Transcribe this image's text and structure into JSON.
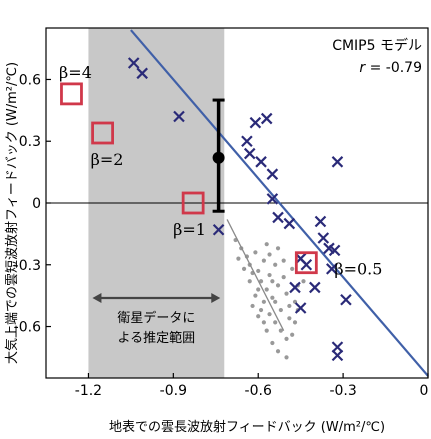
{
  "chart_data": {
    "type": "scatter",
    "title": "CMIP5 モデル",
    "correlation_label": "r = -0.79",
    "correlation_parts": {
      "italic": "r",
      "rest": " = -0.79"
    },
    "xlabel": "地表での雲長波放射フィードバック (W/m²/℃)",
    "ylabel": "大気上端での雲短波放射フィードバック (W/m²/℃)",
    "xlim": [
      -1.35,
      0
    ],
    "ylim": [
      -0.85,
      0.85
    ],
    "xticks": [
      {
        "value": -1.2,
        "label": "-1.2"
      },
      {
        "value": -0.9,
        "label": "-0.9"
      },
      {
        "value": -0.6,
        "label": "-0.6"
      },
      {
        "value": -0.3,
        "label": "-0.3"
      },
      {
        "value": 0,
        "label": "0"
      }
    ],
    "yticks": [
      {
        "value": 0.6,
        "label": "0.6"
      },
      {
        "value": 0.3,
        "label": "0.3"
      },
      {
        "value": 0,
        "label": "0"
      },
      {
        "value": -0.3,
        "label": "-0.3"
      },
      {
        "value": -0.6,
        "label": "-0.6"
      }
    ],
    "satellite_range": {
      "x": [
        -1.2,
        -0.72
      ],
      "label_lines": [
        "衛星データに",
        "よる推定範囲"
      ],
      "color": "#c8c8c8"
    },
    "estimate": {
      "x": -0.74,
      "y": 0.22,
      "low": -0.04,
      "high": 0.5
    },
    "regression_line": {
      "x": [
        -1.05,
        0
      ],
      "y": [
        0.84,
        -0.84
      ],
      "color": "#4060a8"
    },
    "cmip5_models": {
      "marker": "x",
      "color": "#2a2a78",
      "points": [
        [
          -1.04,
          0.68
        ],
        [
          -1.01,
          0.63
        ],
        [
          -0.88,
          0.42
        ],
        [
          -0.74,
          -0.13
        ],
        [
          -0.64,
          0.3
        ],
        [
          -0.63,
          0.24
        ],
        [
          -0.61,
          0.39
        ],
        [
          -0.59,
          0.2
        ],
        [
          -0.57,
          0.41
        ],
        [
          -0.55,
          0.14
        ],
        [
          -0.55,
          0.02
        ],
        [
          -0.53,
          -0.07
        ],
        [
          -0.49,
          -0.1
        ],
        [
          -0.45,
          -0.27
        ],
        [
          -0.47,
          -0.41
        ],
        [
          -0.45,
          -0.51
        ],
        [
          -0.4,
          -0.41
        ],
        [
          -0.37,
          -0.17
        ],
        [
          -0.35,
          -0.22
        ],
        [
          -0.34,
          -0.32
        ],
        [
          -0.33,
          -0.23
        ],
        [
          -0.32,
          0.2
        ],
        [
          -0.32,
          -0.7
        ],
        [
          -0.32,
          -0.74
        ],
        [
          -0.29,
          -0.47
        ],
        [
          -0.38,
          -0.09
        ],
        [
          -0.43,
          -0.3
        ]
      ]
    },
    "beta_cases": {
      "marker": "square",
      "color": "#d0384a",
      "points": [
        {
          "label": "β=4",
          "x": -1.26,
          "y": 0.53
        },
        {
          "label": "β=2",
          "x": -1.15,
          "y": 0.34
        },
        {
          "label": "β=1",
          "x": -0.83,
          "y": 0.0
        },
        {
          "label": "β=0.5",
          "x": -0.43,
          "y": -0.29
        }
      ]
    },
    "perturbed_ensemble": {
      "marker": "dot",
      "color": "#999999",
      "trend_line": {
        "x": [
          -0.71,
          -0.51
        ],
        "y": [
          -0.08,
          -0.62
        ]
      },
      "points": [
        [
          -0.68,
          -0.18
        ],
        [
          -0.66,
          -0.22
        ],
        [
          -0.64,
          -0.26
        ],
        [
          -0.63,
          -0.3
        ],
        [
          -0.61,
          -0.24
        ],
        [
          -0.6,
          -0.33
        ],
        [
          -0.59,
          -0.38
        ],
        [
          -0.58,
          -0.28
        ],
        [
          -0.57,
          -0.42
        ],
        [
          -0.56,
          -0.35
        ],
        [
          -0.55,
          -0.46
        ],
        [
          -0.54,
          -0.3
        ],
        [
          -0.53,
          -0.4
        ],
        [
          -0.52,
          -0.52
        ],
        [
          -0.51,
          -0.36
        ],
        [
          -0.5,
          -0.44
        ],
        [
          -0.49,
          -0.56
        ],
        [
          -0.48,
          -0.32
        ],
        [
          -0.47,
          -0.48
        ],
        [
          -0.46,
          -0.4
        ],
        [
          -0.62,
          -0.34
        ],
        [
          -0.6,
          -0.42
        ],
        [
          -0.58,
          -0.48
        ],
        [
          -0.56,
          -0.54
        ],
        [
          -0.54,
          -0.58
        ],
        [
          -0.52,
          -0.62
        ],
        [
          -0.5,
          -0.66
        ],
        [
          -0.55,
          -0.68
        ],
        [
          -0.57,
          -0.62
        ],
        [
          -0.53,
          -0.72
        ],
        [
          -0.65,
          -0.32
        ],
        [
          -0.61,
          -0.45
        ],
        [
          -0.59,
          -0.52
        ],
        [
          -0.63,
          -0.38
        ],
        [
          -0.49,
          -0.5
        ],
        [
          -0.47,
          -0.58
        ],
        [
          -0.51,
          -0.28
        ],
        [
          -0.53,
          -0.22
        ],
        [
          -0.67,
          -0.27
        ],
        [
          -0.56,
          -0.25
        ],
        [
          -0.44,
          -0.38
        ],
        [
          -0.48,
          -0.64
        ],
        [
          -0.58,
          -0.58
        ],
        [
          -0.6,
          -0.55
        ],
        [
          -0.62,
          -0.5
        ],
        [
          -0.55,
          -0.38
        ],
        [
          -0.57,
          -0.2
        ],
        [
          -0.5,
          -0.75
        ],
        [
          -0.54,
          -0.48
        ],
        [
          -0.46,
          -0.52
        ]
      ]
    }
  }
}
